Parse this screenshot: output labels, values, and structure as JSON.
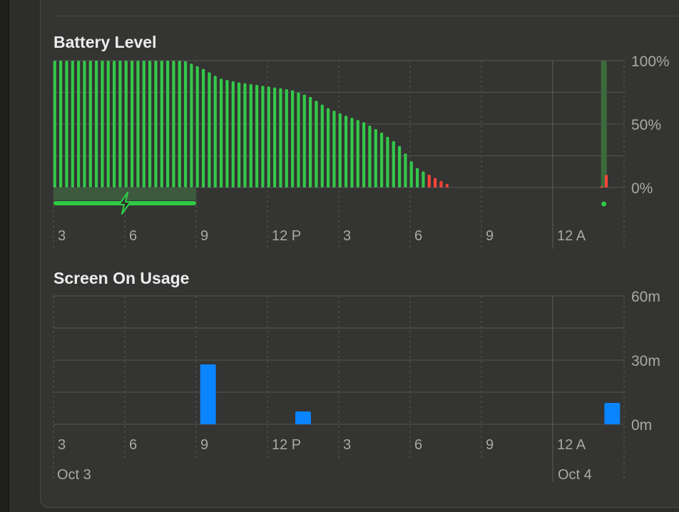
{
  "colors": {
    "battery": "#34c84a",
    "battery_low": "#ff453a",
    "charging": "#2fc845",
    "usage": "#0a84ff",
    "grid": "#535350",
    "text": "#a8a8a5"
  },
  "chart_data": [
    {
      "type": "bar",
      "title": "Battery Level",
      "x_tick_labels": [
        "3",
        "6",
        "9",
        "12 P",
        "3",
        "6",
        "9",
        "12 A"
      ],
      "y_tick_labels": [
        "100%",
        "50%",
        "0%"
      ],
      "ylim": [
        0,
        100
      ],
      "x_range_hours": [
        3,
        27
      ],
      "charging_interval_hours": [
        3,
        9
      ],
      "charging_icon": "lightning-bolt-icon",
      "series": [
        {
          "x_hours": [
            3.25,
            4.0,
            4.75,
            5.5,
            6.25,
            7.0,
            7.75,
            8.5,
            9.25,
            10.0,
            10.75,
            11.5,
            12.25,
            13.0,
            13.75,
            14.5,
            15.25,
            16.0,
            16.75,
            17.5,
            18.25,
            19.0,
            19.75
          ],
          "values": [
            100,
            100,
            100,
            100,
            100,
            100,
            100,
            100,
            94,
            86,
            83,
            81,
            79,
            77,
            72,
            63,
            57,
            52,
            44,
            34,
            16,
            8,
            1
          ]
        }
      ],
      "late_points": {
        "x_hours": [
          26.05,
          26.25
        ],
        "values": [
          1,
          10
        ],
        "dot_x_hours": 26.15
      }
    },
    {
      "type": "bar",
      "title": "Screen On Usage",
      "x_tick_labels": [
        "3",
        "6",
        "9",
        "12 P",
        "3",
        "6",
        "9",
        "12 A"
      ],
      "date_labels": [
        "Oct 3",
        "Oct 4"
      ],
      "y_tick_labels": [
        "60m",
        "30m",
        "0m"
      ],
      "ylim": [
        0,
        60
      ],
      "x_range_hours": [
        3,
        27
      ],
      "series": [
        {
          "x_hours": [
            9.5,
            13.5,
            26.5
          ],
          "values": [
            28,
            6,
            10
          ]
        }
      ]
    }
  ]
}
